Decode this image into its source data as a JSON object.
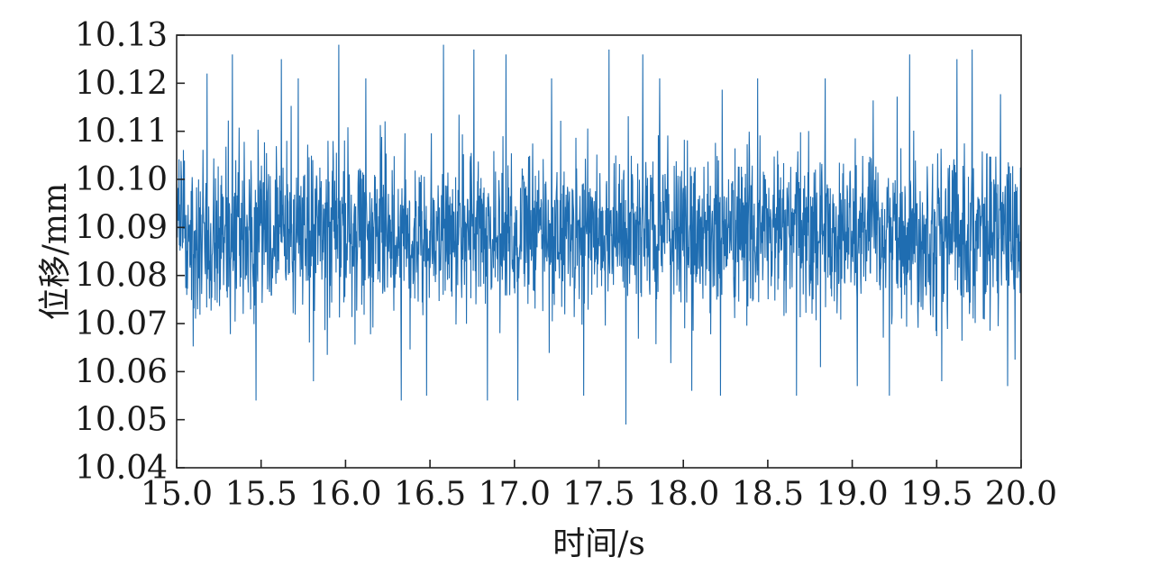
{
  "chart_data": {
    "type": "line",
    "xlabel": "时间/s",
    "ylabel": "位移/mm",
    "xlim": [
      15.0,
      20.0
    ],
    "ylim": [
      10.04,
      10.13
    ],
    "x_ticks": [
      "15.0",
      "15.5",
      "16.0",
      "16.5",
      "17.0",
      "17.5",
      "18.0",
      "18.5",
      "19.0",
      "19.5",
      "20.0"
    ],
    "y_ticks": [
      "10.04",
      "10.05",
      "10.06",
      "10.07",
      "10.08",
      "10.09",
      "10.10",
      "10.11",
      "10.12",
      "10.13"
    ],
    "grid": false,
    "legend": "none",
    "series": [
      {
        "color": "#1f6db1",
        "sample_interval": 0.002,
        "mean": 10.089,
        "core_band": [
          10.075,
          10.102
        ],
        "spike_range": [
          10.049,
          10.128
        ],
        "x": [
          15.18,
          15.33,
          15.47,
          15.62,
          15.72,
          15.81,
          15.96,
          16.12,
          16.33,
          16.48,
          16.58,
          16.76,
          16.84,
          16.95,
          17.02,
          17.22,
          17.41,
          17.56,
          17.66,
          17.76,
          17.86,
          18.05,
          18.22,
          18.44,
          18.67,
          18.84,
          19.03,
          19.22,
          19.34,
          19.53,
          19.62,
          19.71,
          19.92
        ],
        "y": [
          10.122,
          10.126,
          10.054,
          10.125,
          10.121,
          10.058,
          10.128,
          10.121,
          10.054,
          10.055,
          10.128,
          10.127,
          10.054,
          10.126,
          10.054,
          10.121,
          10.055,
          10.127,
          10.049,
          10.126,
          10.121,
          10.056,
          10.055,
          10.121,
          10.055,
          10.121,
          10.057,
          10.055,
          10.126,
          10.058,
          10.125,
          10.127,
          10.057
        ]
      }
    ]
  }
}
